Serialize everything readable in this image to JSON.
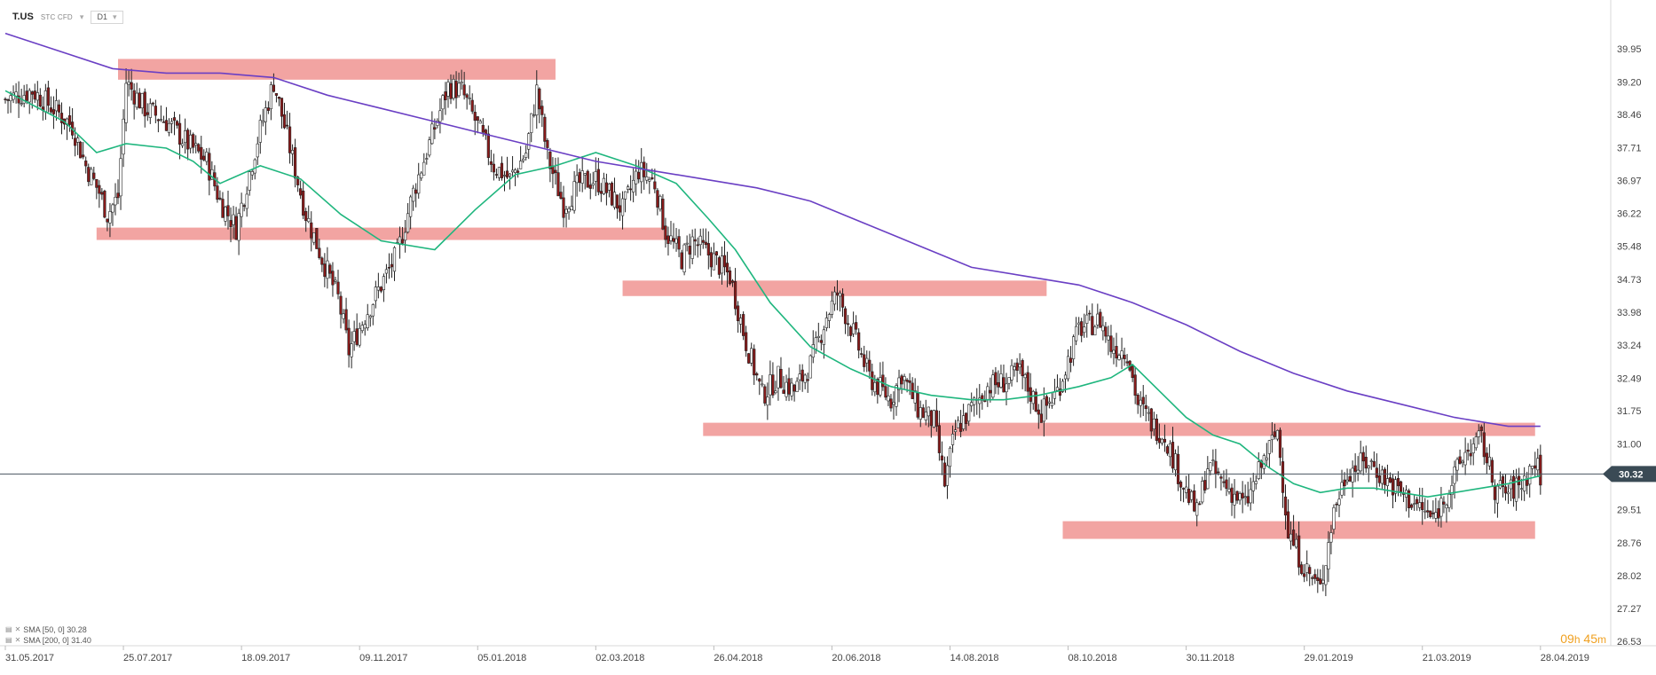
{
  "header": {
    "symbol": "T.US",
    "subtype": "STC CFD",
    "timeframe": "D1"
  },
  "legend": {
    "items": [
      {
        "label": "SMA [50, 0] 30.28"
      },
      {
        "label": "SMA [200, 0] 31.40"
      }
    ]
  },
  "countdown": {
    "hours": "09",
    "h_unit": "h",
    "minutes": "45",
    "m_unit": "m"
  },
  "colors": {
    "background": "#ffffff",
    "sma50": "#1fb67e",
    "sma200": "#6a3fc4",
    "zones": "#f19a98",
    "bull_candle": "#ffffff",
    "bear_candle": "#8a1a1a",
    "wick": "#222222",
    "price_label_bg": "#3a4a55",
    "countdown": "#f0a020"
  },
  "chart_data": {
    "type": "candlestick",
    "title": "",
    "xlabel": "",
    "ylabel": "",
    "ylim": [
      26.53,
      40.5
    ],
    "yticks": [
      "39.95",
      "39.20",
      "38.46",
      "37.71",
      "36.97",
      "36.22",
      "35.48",
      "34.73",
      "33.98",
      "33.24",
      "32.49",
      "31.75",
      "31.00",
      "29.51",
      "28.76",
      "28.02",
      "27.27",
      "26.53"
    ],
    "xticks": [
      "31.05.2017",
      "25.07.2017",
      "18.09.2017",
      "09.11.2017",
      "05.01.2018",
      "02.03.2018",
      "26.04.2018",
      "20.06.2018",
      "14.08.2018",
      "08.10.2018",
      "30.11.2018",
      "29.01.2019",
      "21.03.2019",
      "28.04.2019"
    ],
    "last_price": "30.32",
    "price_path": [
      [
        0,
        38.8
      ],
      [
        10,
        39.0
      ],
      [
        18,
        38.6
      ],
      [
        25,
        38.2
      ],
      [
        30,
        37.3
      ],
      [
        35,
        36.7
      ],
      [
        38,
        36.2
      ],
      [
        42,
        36.6
      ],
      [
        45,
        39.2
      ],
      [
        52,
        38.6
      ],
      [
        60,
        38.3
      ],
      [
        68,
        37.8
      ],
      [
        75,
        37.4
      ],
      [
        80,
        36.5
      ],
      [
        86,
        35.9
      ],
      [
        94,
        37.9
      ],
      [
        100,
        39.2
      ],
      [
        104,
        38.2
      ],
      [
        112,
        36.2
      ],
      [
        118,
        35.2
      ],
      [
        124,
        34.3
      ],
      [
        128,
        33.1
      ],
      [
        134,
        33.9
      ],
      [
        140,
        34.6
      ],
      [
        146,
        35.3
      ],
      [
        152,
        36.7
      ],
      [
        158,
        37.8
      ],
      [
        165,
        39.1
      ],
      [
        170,
        39.0
      ],
      [
        176,
        38.2
      ],
      [
        182,
        37.3
      ],
      [
        188,
        37.0
      ],
      [
        194,
        37.6
      ],
      [
        198,
        39.0
      ],
      [
        202,
        37.5
      ],
      [
        208,
        36.4
      ],
      [
        214,
        36.9
      ],
      [
        220,
        37.0
      ],
      [
        226,
        36.6
      ],
      [
        230,
        36.3
      ],
      [
        236,
        37.2
      ],
      [
        242,
        36.9
      ],
      [
        246,
        35.8
      ],
      [
        252,
        35.2
      ],
      [
        256,
        35.6
      ],
      [
        262,
        35.3
      ],
      [
        270,
        34.8
      ],
      [
        276,
        33.3
      ],
      [
        282,
        32.1
      ],
      [
        288,
        32.5
      ],
      [
        294,
        32.2
      ],
      [
        300,
        32.8
      ],
      [
        306,
        33.9
      ],
      [
        310,
        34.4
      ],
      [
        316,
        33.5
      ],
      [
        322,
        32.5
      ],
      [
        330,
        32.0
      ],
      [
        334,
        32.6
      ],
      [
        340,
        31.8
      ],
      [
        346,
        31.5
      ],
      [
        350,
        30.1
      ],
      [
        354,
        31.3
      ],
      [
        360,
        31.8
      ],
      [
        366,
        32.3
      ],
      [
        372,
        32.4
      ],
      [
        378,
        32.6
      ],
      [
        386,
        31.7
      ],
      [
        392,
        32.2
      ],
      [
        400,
        33.6
      ],
      [
        408,
        33.8
      ],
      [
        412,
        33.2
      ],
      [
        418,
        33.1
      ],
      [
        422,
        31.9
      ],
      [
        428,
        31.4
      ],
      [
        432,
        31.2
      ],
      [
        438,
        30.2
      ],
      [
        444,
        29.4
      ],
      [
        448,
        30.5
      ],
      [
        454,
        30.1
      ],
      [
        462,
        29.6
      ],
      [
        468,
        30.5
      ],
      [
        474,
        31.3
      ],
      [
        478,
        29.0
      ],
      [
        484,
        28.2
      ],
      [
        490,
        27.7
      ],
      [
        495,
        29.5
      ],
      [
        500,
        30.4
      ],
      [
        508,
        30.6
      ],
      [
        516,
        30.1
      ],
      [
        524,
        29.7
      ],
      [
        532,
        29.3
      ],
      [
        538,
        30.0
      ],
      [
        544,
        30.8
      ],
      [
        550,
        31.1
      ],
      [
        555,
        30.0
      ],
      [
        560,
        29.9
      ],
      [
        565,
        30.1
      ],
      [
        570,
        30.6
      ],
      [
        572,
        30.3
      ]
    ],
    "series": [
      {
        "name": "SMA [50, 0]",
        "values": [
          [
            0,
            39.0
          ],
          [
            22,
            38.3
          ],
          [
            34,
            37.6
          ],
          [
            45,
            37.8
          ],
          [
            60,
            37.7
          ],
          [
            70,
            37.4
          ],
          [
            80,
            36.9
          ],
          [
            95,
            37.3
          ],
          [
            110,
            37.0
          ],
          [
            125,
            36.2
          ],
          [
            140,
            35.6
          ],
          [
            160,
            35.4
          ],
          [
            175,
            36.3
          ],
          [
            190,
            37.1
          ],
          [
            205,
            37.3
          ],
          [
            220,
            37.6
          ],
          [
            235,
            37.3
          ],
          [
            250,
            36.9
          ],
          [
            262,
            36.1
          ],
          [
            272,
            35.4
          ],
          [
            285,
            34.2
          ],
          [
            300,
            33.2
          ],
          [
            315,
            32.7
          ],
          [
            330,
            32.3
          ],
          [
            345,
            32.1
          ],
          [
            360,
            32.0
          ],
          [
            372,
            32.0
          ],
          [
            385,
            32.1
          ],
          [
            400,
            32.3
          ],
          [
            412,
            32.5
          ],
          [
            420,
            32.8
          ],
          [
            430,
            32.2
          ],
          [
            440,
            31.6
          ],
          [
            450,
            31.2
          ],
          [
            460,
            31.0
          ],
          [
            470,
            30.5
          ],
          [
            480,
            30.1
          ],
          [
            490,
            29.9
          ],
          [
            500,
            30.0
          ],
          [
            510,
            30.0
          ],
          [
            520,
            29.9
          ],
          [
            530,
            29.8
          ],
          [
            540,
            29.9
          ],
          [
            550,
            30.0
          ],
          [
            560,
            30.1
          ],
          [
            572,
            30.28
          ]
        ]
      },
      {
        "name": "SMA [200, 0]",
        "values": [
          [
            0,
            40.3
          ],
          [
            20,
            39.9
          ],
          [
            40,
            39.5
          ],
          [
            60,
            39.4
          ],
          [
            80,
            39.4
          ],
          [
            100,
            39.3
          ],
          [
            120,
            38.9
          ],
          [
            140,
            38.6
          ],
          [
            160,
            38.3
          ],
          [
            180,
            38.0
          ],
          [
            200,
            37.7
          ],
          [
            220,
            37.4
          ],
          [
            240,
            37.2
          ],
          [
            260,
            37.0
          ],
          [
            280,
            36.8
          ],
          [
            300,
            36.5
          ],
          [
            320,
            36.0
          ],
          [
            340,
            35.5
          ],
          [
            360,
            35.0
          ],
          [
            380,
            34.8
          ],
          [
            400,
            34.6
          ],
          [
            420,
            34.2
          ],
          [
            440,
            33.7
          ],
          [
            460,
            33.1
          ],
          [
            480,
            32.6
          ],
          [
            500,
            32.2
          ],
          [
            520,
            31.9
          ],
          [
            540,
            31.6
          ],
          [
            560,
            31.4
          ],
          [
            572,
            31.4
          ]
        ]
      }
    ],
    "zones": [
      {
        "from": 42,
        "to": 205,
        "low": 39.25,
        "high": 39.72
      },
      {
        "from": 34,
        "to": 246,
        "low": 35.62,
        "high": 35.9
      },
      {
        "from": 230,
        "to": 388,
        "low": 34.35,
        "high": 34.7
      },
      {
        "from": 260,
        "to": 570,
        "low": 31.18,
        "high": 31.48
      },
      {
        "from": 394,
        "to": 570,
        "low": 28.85,
        "high": 29.25
      }
    ],
    "x_range": [
      0,
      580
    ],
    "xtick_index": [
      0,
      44,
      88,
      132,
      176,
      220,
      264,
      308,
      352,
      396,
      440,
      484,
      528,
      572
    ]
  }
}
